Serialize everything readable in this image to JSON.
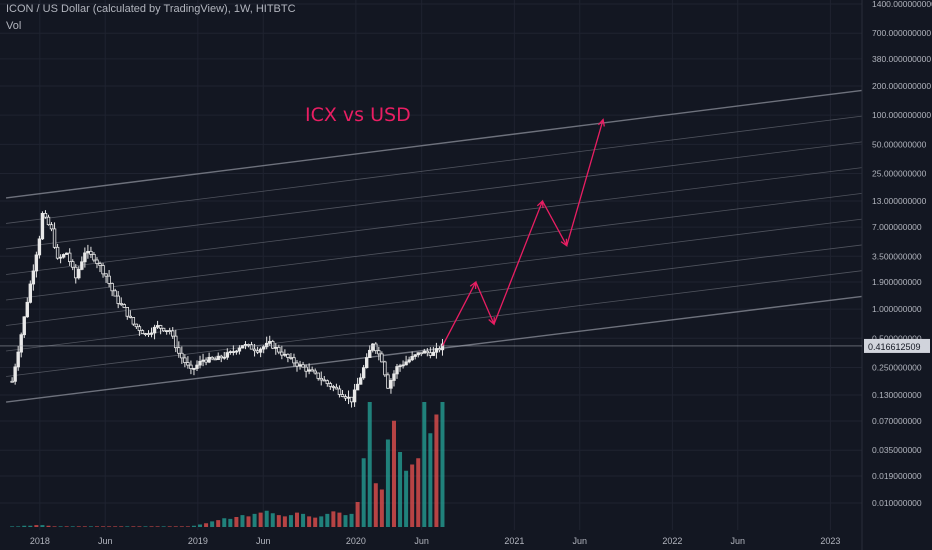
{
  "header": {
    "title": "ICON / US Dollar (calculated by TradingView), 1W, HITBTC",
    "volume_label": "Vol"
  },
  "annotation": {
    "text": "ICX vs USD",
    "color": "#e91e63"
  },
  "colors": {
    "background": "#131722",
    "grid": "#1f2330",
    "candle": "#e8e8e8",
    "channel": "#787b86",
    "volume_up": "#26a69a",
    "volume_down": "#ef5350",
    "projection": "#e91e63",
    "text": "#b2b5be"
  },
  "chart_data": {
    "type": "candlestick",
    "x_axis": {
      "ticks": [
        "2018",
        "Jun",
        "2019",
        "Jun",
        "2020",
        "Jun",
        "2021",
        "Jun",
        "2022",
        "Jun",
        "2023"
      ],
      "tick_dates": [
        "2018-01-01",
        "2018-06-01",
        "2019-01-01",
        "2019-06-01",
        "2020-01-01",
        "2020-06-01",
        "2021-01-01",
        "2021-06-01",
        "2022-01-01",
        "2022-06-01",
        "2023-01-01"
      ],
      "range": [
        "2017-10-01",
        "2023-03-15"
      ]
    },
    "y_axis": {
      "scale": "log",
      "ticks": [
        "1400.000000000",
        "700.000000000",
        "380.000000000",
        "200.000000000",
        "100.000000000",
        "50.000000000",
        "25.000000000",
        "13.000000000",
        "7.000000000",
        "3.500000000",
        "1.900000000",
        "1.000000000",
        "0.500000000",
        "0.250000000",
        "0.130000000",
        "0.070000000",
        "0.035000000",
        "0.019000000",
        "0.010000000"
      ],
      "tick_values": [
        1400,
        700,
        380,
        200,
        100,
        50,
        25,
        13,
        7,
        3.5,
        1.9,
        1.0,
        0.5,
        0.25,
        0.13,
        0.07,
        0.035,
        0.019,
        0.01
      ]
    },
    "last_price": {
      "label": "0.416612509",
      "value": 0.4166
    },
    "price_path": [
      {
        "date": "2017-10-29",
        "price": 0.18
      },
      {
        "date": "2017-11-19",
        "price": 0.55
      },
      {
        "date": "2017-12-10",
        "price": 1.8
      },
      {
        "date": "2017-12-31",
        "price": 5.5
      },
      {
        "date": "2018-01-07",
        "price": 9.5
      },
      {
        "date": "2018-01-28",
        "price": 6.5
      },
      {
        "date": "2018-02-11",
        "price": 3.2
      },
      {
        "date": "2018-03-04",
        "price": 3.8
      },
      {
        "date": "2018-03-25",
        "price": 2.1
      },
      {
        "date": "2018-04-15",
        "price": 3.9
      },
      {
        "date": "2018-05-06",
        "price": 3.4
      },
      {
        "date": "2018-06-03",
        "price": 2.2
      },
      {
        "date": "2018-06-24",
        "price": 1.3
      },
      {
        "date": "2018-07-15",
        "price": 1.0
      },
      {
        "date": "2018-08-05",
        "price": 0.7
      },
      {
        "date": "2018-09-02",
        "price": 0.55
      },
      {
        "date": "2018-09-30",
        "price": 0.66
      },
      {
        "date": "2018-10-28",
        "price": 0.6
      },
      {
        "date": "2018-11-18",
        "price": 0.35
      },
      {
        "date": "2018-12-16",
        "price": 0.23
      },
      {
        "date": "2019-01-13",
        "price": 0.3
      },
      {
        "date": "2019-02-10",
        "price": 0.3
      },
      {
        "date": "2019-03-17",
        "price": 0.35
      },
      {
        "date": "2019-04-14",
        "price": 0.43
      },
      {
        "date": "2019-05-19",
        "price": 0.38
      },
      {
        "date": "2019-06-16",
        "price": 0.44
      },
      {
        "date": "2019-07-21",
        "price": 0.33
      },
      {
        "date": "2019-08-18",
        "price": 0.27
      },
      {
        "date": "2019-09-22",
        "price": 0.22
      },
      {
        "date": "2019-10-20",
        "price": 0.18
      },
      {
        "date": "2019-11-24",
        "price": 0.14
      },
      {
        "date": "2019-12-22",
        "price": 0.115
      },
      {
        "date": "2020-01-12",
        "price": 0.2
      },
      {
        "date": "2020-02-09",
        "price": 0.45
      },
      {
        "date": "2020-03-01",
        "price": 0.3
      },
      {
        "date": "2020-03-15",
        "price": 0.16
      },
      {
        "date": "2020-04-05",
        "price": 0.25
      },
      {
        "date": "2020-05-03",
        "price": 0.3
      },
      {
        "date": "2020-05-31",
        "price": 0.36
      },
      {
        "date": "2020-06-28",
        "price": 0.35
      },
      {
        "date": "2020-07-19",
        "price": 0.4166
      }
    ],
    "projection": [
      {
        "date": "2020-07-19",
        "price": 0.4166
      },
      {
        "date": "2020-10-04",
        "price": 1.9
      },
      {
        "date": "2020-11-15",
        "price": 0.7
      },
      {
        "date": "2021-03-07",
        "price": 13
      },
      {
        "date": "2021-05-02",
        "price": 4.5
      },
      {
        "date": "2021-07-25",
        "price": 90
      }
    ],
    "channel": {
      "lower": {
        "start": {
          "date": "2017-10-15",
          "price": 0.11
        },
        "end": {
          "date": "2023-03-15",
          "price": 1.35
        }
      },
      "upper": {
        "start": {
          "date": "2017-10-15",
          "price": 14
        },
        "end": {
          "date": "2023-03-15",
          "price": 180
        }
      },
      "divisions": 8
    },
    "volume": {
      "dates": [
        "2017-10-29",
        "2017-11-12",
        "2017-11-26",
        "2017-12-10",
        "2017-12-24",
        "2018-01-07",
        "2018-01-21",
        "2018-02-04",
        "2018-02-18",
        "2018-03-04",
        "2018-03-18",
        "2018-04-01",
        "2018-04-15",
        "2018-04-29",
        "2018-05-13",
        "2018-05-27",
        "2018-06-10",
        "2018-06-24",
        "2018-07-08",
        "2018-07-22",
        "2018-08-05",
        "2018-08-19",
        "2018-09-02",
        "2018-09-16",
        "2018-09-30",
        "2018-10-14",
        "2018-10-28",
        "2018-11-11",
        "2018-11-25",
        "2018-12-09",
        "2018-12-23",
        "2019-01-06",
        "2019-01-20",
        "2019-02-03",
        "2019-02-17",
        "2019-03-03",
        "2019-03-17",
        "2019-03-31",
        "2019-04-14",
        "2019-04-28",
        "2019-05-12",
        "2019-05-26",
        "2019-06-09",
        "2019-06-23",
        "2019-07-07",
        "2019-07-21",
        "2019-08-04",
        "2019-08-18",
        "2019-09-01",
        "2019-09-15",
        "2019-09-29",
        "2019-10-13",
        "2019-10-27",
        "2019-11-10",
        "2019-11-24",
        "2019-12-08",
        "2019-12-22",
        "2020-01-05",
        "2020-01-19",
        "2020-02-02",
        "2020-02-16",
        "2020-03-01",
        "2020-03-15",
        "2020-03-29",
        "2020-04-12",
        "2020-04-26",
        "2020-05-10",
        "2020-05-24",
        "2020-06-07",
        "2020-06-21",
        "2020-07-05",
        "2020-07-19"
      ],
      "values": [
        1,
        1,
        2,
        2,
        3,
        3,
        2,
        1,
        1,
        1,
        1,
        1,
        1,
        1,
        1,
        1,
        1,
        1,
        1,
        1,
        1,
        1,
        1,
        1,
        1,
        1,
        1,
        1,
        1,
        1,
        2,
        4,
        6,
        9,
        11,
        14,
        13,
        16,
        19,
        17,
        21,
        23,
        26,
        22,
        19,
        17,
        19,
        23,
        21,
        17,
        15,
        17,
        21,
        25,
        23,
        19,
        21,
        40,
        110,
        200,
        70,
        60,
        140,
        170,
        120,
        90,
        100,
        110,
        200,
        150,
        180,
        200
      ],
      "up": [
        true,
        true,
        true,
        true,
        false,
        true,
        false,
        false,
        true,
        false,
        true,
        false,
        false,
        true,
        false,
        false,
        false,
        false,
        false,
        true,
        false,
        false,
        true,
        false,
        false,
        true,
        false,
        false,
        false,
        false,
        true,
        true,
        false,
        true,
        false,
        true,
        true,
        false,
        true,
        false,
        true,
        false,
        true,
        true,
        false,
        false,
        true,
        false,
        true,
        false,
        false,
        true,
        true,
        false,
        false,
        true,
        true,
        false,
        true,
        true,
        false,
        false,
        true,
        false,
        true,
        true,
        false,
        false,
        true,
        true,
        false,
        true
      ],
      "max": 200
    }
  }
}
